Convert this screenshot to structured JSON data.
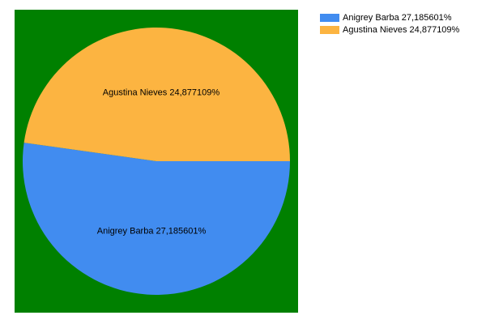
{
  "chart_data": {
    "type": "pie",
    "title": "",
    "background_color": "#008000",
    "start_angle_deg": 0,
    "direction": "clockwise",
    "slices": [
      {
        "label": "Anigrey Barba  27,185601%",
        "value": 27.185601,
        "color": "#418CF0"
      },
      {
        "label": "Agustina Nieves 24,877109%",
        "value": 24.877109,
        "color": "#FCB441"
      }
    ],
    "legend_position": "top-right"
  }
}
